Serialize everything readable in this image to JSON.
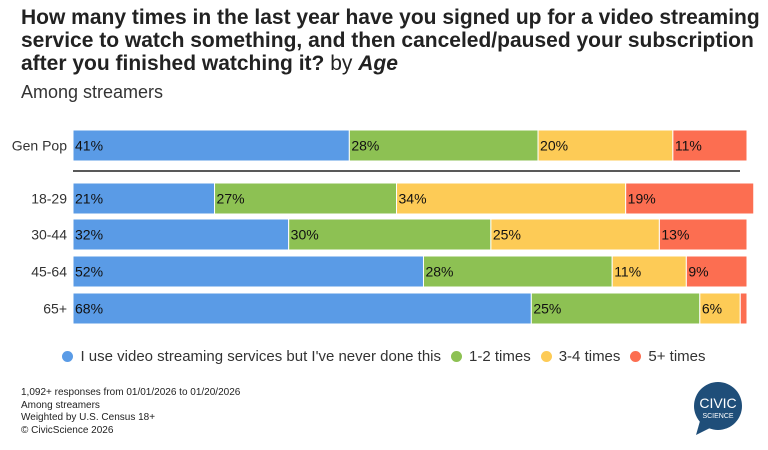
{
  "chart_data": {
    "type": "bar",
    "orientation": "horizontal",
    "stacked": true,
    "title": "How many times in the last year have you signed up for a video streaming service to watch something, and then canceled/paused your subscription after you finished watching it?",
    "title_suffix_by": "by",
    "title_suffix_group": "Age",
    "subtitle": "Among streamers",
    "categories": [
      "Gen Pop",
      "18-29",
      "30-44",
      "45-64",
      "65+"
    ],
    "series": [
      {
        "name": "I use video streaming services but I've never done this",
        "color": "#5a9be6",
        "values": [
          41,
          21,
          32,
          52,
          68
        ]
      },
      {
        "name": "1-2 times",
        "color": "#8dc153",
        "values": [
          28,
          27,
          30,
          28,
          25
        ]
      },
      {
        "name": "3-4 times",
        "color": "#fdcb56",
        "values": [
          20,
          34,
          25,
          11,
          6
        ]
      },
      {
        "name": "5+ times",
        "color": "#fc6e51",
        "values": [
          11,
          19,
          13,
          9,
          1
        ]
      }
    ],
    "value_suffix": "%",
    "xlim": [
      0,
      100
    ],
    "grid": false,
    "legend_position": "bottom"
  },
  "footer": {
    "lines": [
      "1,092+ responses from 01/01/2026 to 01/20/2026",
      "Among streamers",
      "Weighted by U.S. Census 18+",
      "© CivicScience 2026"
    ]
  },
  "logo": {
    "text": "CIVIC SCIENCE",
    "color": "#1f4e79"
  }
}
